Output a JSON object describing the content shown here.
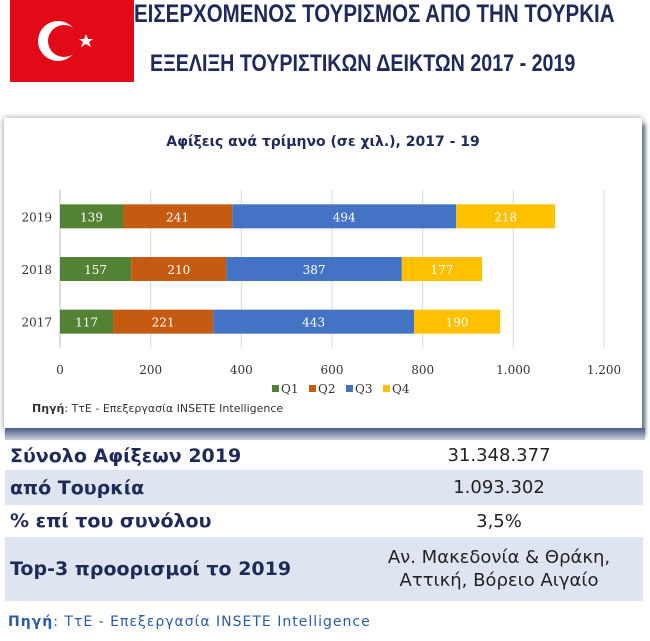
{
  "header": {
    "title": "ΕΙΣΕΡΧΟΜΕΝΟΣ ΤΟΥΡΙΣΜΟΣ ΑΠΟ ΤΗΝ ΤΟΥΡΚΙΑ",
    "subtitle": "ΕΞΕΛΙΞΗ ΤΟΥΡΙΣΤΙΚΩΝ ΔΕΙΚΤΩΝ 2017 - 2019",
    "flag_color": "#e30a17"
  },
  "chart_data": {
    "type": "bar",
    "orientation": "horizontal",
    "stacked": true,
    "title": "Αφίξεις ανά τρίμηνο (σε χιλ.), 2017 - 19",
    "categories": [
      "2019",
      "2018",
      "2017"
    ],
    "series": [
      {
        "name": "Q1",
        "color": "#548235",
        "values": [
          139,
          157,
          117
        ]
      },
      {
        "name": "Q2",
        "color": "#c55a11",
        "values": [
          241,
          210,
          221
        ]
      },
      {
        "name": "Q3",
        "color": "#4472c4",
        "values": [
          494,
          387,
          443
        ]
      },
      {
        "name": "Q4",
        "color": "#ffc000",
        "values": [
          218,
          177,
          190
        ]
      }
    ],
    "xlim": [
      0,
      1200
    ],
    "xticks": [
      "0",
      "200",
      "400",
      "600",
      "800",
      "1.000",
      "1.200"
    ],
    "grid": true,
    "legend": "bottom",
    "source_label": "Πηγή",
    "source_text": ": ΤτΕ - Επεξεργασία INSETE Intelligence"
  },
  "table": [
    {
      "label": "Σύνολο Αφίξεων 2019",
      "value": "31.348.377"
    },
    {
      "label": "από Τουρκία",
      "value": "1.093.302"
    },
    {
      "label": "% επί του συνόλου",
      "value": "3,5%"
    },
    {
      "label": "Top-3 προορισμοί το 2019",
      "value": "Αν. Μακεδονία & Θράκη, Αττική, Βόρειο Αιγαίο"
    }
  ],
  "source": {
    "label": "Πηγή",
    "text": ": ΤτΕ - Επεξεργασία INSETE Intelligence"
  }
}
